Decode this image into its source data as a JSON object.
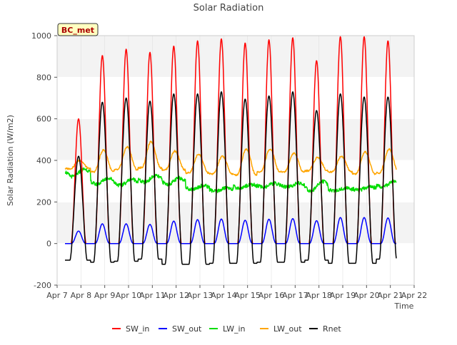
{
  "chart_data": {
    "type": "line",
    "title": "Solar Radiation",
    "xlabel": "Time",
    "ylabel": "Solar Radiation (W/m2)",
    "site_label": "BC_met",
    "xlim": [
      7,
      22
    ],
    "ylim": [
      -200,
      1000
    ],
    "x_ticks": [
      {
        "value": 7,
        "label": "Apr 7"
      },
      {
        "value": 8,
        "label": "Apr 8"
      },
      {
        "value": 9,
        "label": "Apr 9"
      },
      {
        "value": 10,
        "label": "Apr 10"
      },
      {
        "value": 11,
        "label": "Apr 11"
      },
      {
        "value": 12,
        "label": "Apr 12"
      },
      {
        "value": 13,
        "label": "Apr 13"
      },
      {
        "value": 14,
        "label": "Apr 14"
      },
      {
        "value": 15,
        "label": "Apr 15"
      },
      {
        "value": 16,
        "label": "Apr 16"
      },
      {
        "value": 17,
        "label": "Apr 17"
      },
      {
        "value": 18,
        "label": "Apr 18"
      },
      {
        "value": 19,
        "label": "Apr 19"
      },
      {
        "value": 20,
        "label": "Apr 20"
      },
      {
        "value": 21,
        "label": "Apr 21"
      },
      {
        "value": 22,
        "label": "Apr 22"
      }
    ],
    "y_ticks": [
      -200,
      0,
      200,
      400,
      600,
      800,
      1000
    ],
    "grid": true,
    "legend_position": "bottom",
    "x_range_data": [
      7.33,
      21.25
    ],
    "days": [
      7.9,
      8.9,
      9.9,
      10.9,
      11.9,
      12.9,
      13.9,
      14.9,
      15.9,
      16.9,
      17.9,
      18.9,
      19.9,
      20.9
    ],
    "series": [
      {
        "name": "SW_in",
        "color": "#ff0000",
        "daily_peak": [
          600,
          905,
          935,
          920,
          950,
          975,
          985,
          965,
          980,
          990,
          880,
          995,
          995,
          975
        ],
        "night_value": 0
      },
      {
        "name": "SW_out",
        "color": "#0000ff",
        "daily_peak": [
          60,
          95,
          95,
          92,
          108,
          115,
          118,
          112,
          117,
          120,
          110,
          125,
          125,
          123
        ],
        "night_value": 0
      },
      {
        "name": "LW_in",
        "color": "#00dd00",
        "daily_mean": [
          340,
          300,
          295,
          310,
          300,
          270,
          260,
          275,
          280,
          280,
          275,
          260,
          265,
          285
        ],
        "daily_amplitude": [
          30,
          25,
          25,
          25,
          25,
          15,
          15,
          15,
          15,
          15,
          40,
          10,
          15,
          20
        ]
      },
      {
        "name": "LW_out",
        "color": "#ffa500",
        "night_value": [
          360,
          345,
          355,
          365,
          355,
          340,
          335,
          330,
          345,
          345,
          350,
          345,
          335,
          340
        ],
        "daily_peak": [
          400,
          450,
          465,
          490,
          445,
          430,
          420,
          455,
          455,
          435,
          415,
          420,
          440,
          455
        ]
      },
      {
        "name": "Rnet",
        "color": "#000000",
        "daily_peak": [
          420,
          680,
          700,
          685,
          720,
          720,
          730,
          695,
          710,
          730,
          640,
          720,
          705,
          705
        ],
        "night_value": [
          -80,
          -90,
          -85,
          -75,
          -100,
          -100,
          -95,
          -95,
          -90,
          -90,
          -80,
          -95,
          -95,
          -75
        ]
      }
    ]
  }
}
